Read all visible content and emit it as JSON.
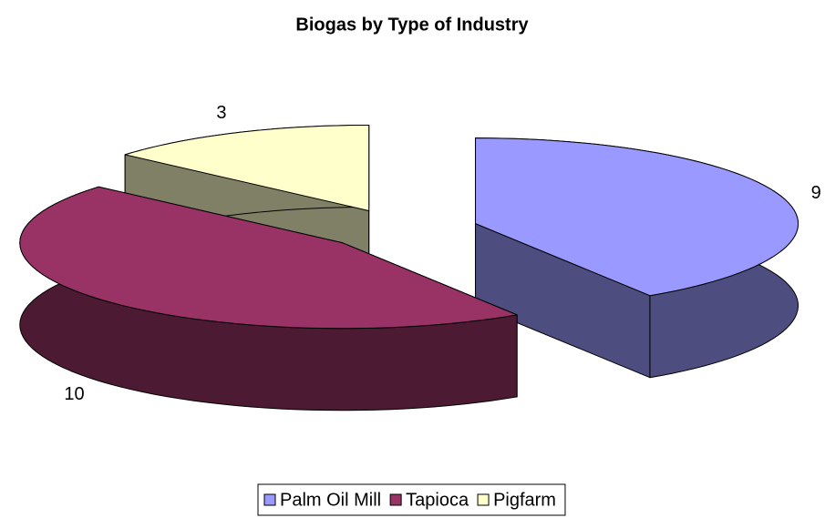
{
  "chart_data": {
    "type": "pie",
    "title": "Biogas by Type of Industry",
    "categories": [
      "Palm Oil Mill",
      "Tapioca",
      "Pigfarm"
    ],
    "values": [
      9,
      10,
      3
    ],
    "colors": [
      "#9999ff",
      "#993366",
      "#ffffcc"
    ],
    "legend": "bottom"
  }
}
